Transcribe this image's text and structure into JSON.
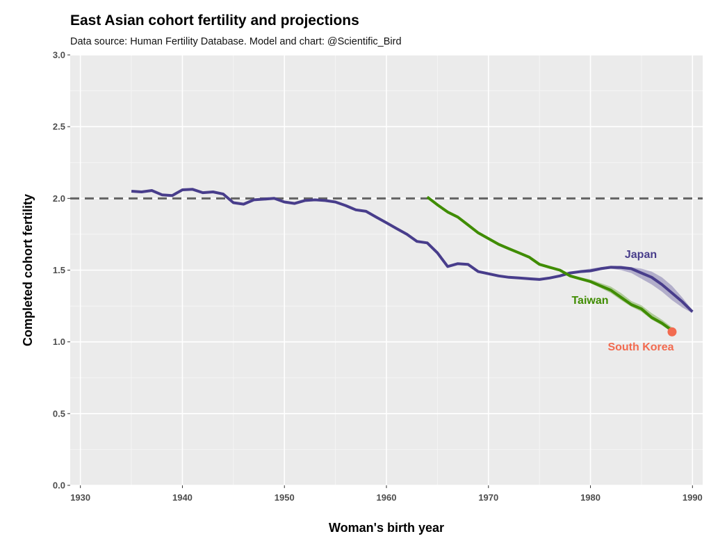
{
  "chart_data": {
    "type": "line",
    "title": "East Asian cohort fertility and projections",
    "subtitle": "Data source: Human Fertility Database.  Model and chart: @Scientific_Bird",
    "xlabel": "Woman's birth year",
    "ylabel": "Completed cohort fertility",
    "xlim": [
      1929,
      1991
    ],
    "ylim": [
      0,
      3
    ],
    "x_ticks": [
      1930,
      1940,
      1950,
      1960,
      1970,
      1980,
      1990
    ],
    "y_ticks": [
      0,
      0.5,
      1,
      1.5,
      2,
      2.5,
      3
    ],
    "x_tick_labels": [
      "1930",
      "1940",
      "1950",
      "1960",
      "1970",
      "1980",
      "1990"
    ],
    "y_tick_labels": [
      "0.0",
      "0.5",
      "1.0",
      "1.5",
      "2.0",
      "2.5",
      "3.0"
    ],
    "grid": true,
    "reference_line": {
      "y": 2.0,
      "style": "dashed",
      "color": "#636363"
    },
    "series": [
      {
        "name": "Japan",
        "color": "#483d8b",
        "x": [
          1935,
          1936,
          1937,
          1938,
          1939,
          1940,
          1941,
          1942,
          1943,
          1944,
          1945,
          1946,
          1947,
          1948,
          1949,
          1950,
          1951,
          1952,
          1953,
          1954,
          1955,
          1956,
          1957,
          1958,
          1959,
          1960,
          1961,
          1962,
          1963,
          1964,
          1965,
          1966,
          1967,
          1968,
          1969,
          1970,
          1971,
          1972,
          1973,
          1974,
          1975,
          1976,
          1977,
          1978,
          1979,
          1980,
          1981,
          1982,
          1983,
          1984,
          1985,
          1986,
          1987,
          1988,
          1989,
          1990
        ],
        "y": [
          2.05,
          2.045,
          2.055,
          2.025,
          2.02,
          2.06,
          2.063,
          2.04,
          2.045,
          2.03,
          1.97,
          1.96,
          1.99,
          1.995,
          2.0,
          1.975,
          1.965,
          1.985,
          1.99,
          1.985,
          1.975,
          1.95,
          1.92,
          1.91,
          1.87,
          1.83,
          1.79,
          1.75,
          1.7,
          1.69,
          1.62,
          1.525,
          1.545,
          1.54,
          1.49,
          1.475,
          1.46,
          1.45,
          1.445,
          1.44,
          1.435,
          1.445,
          1.46,
          1.48,
          1.49,
          1.495,
          1.51,
          1.52,
          1.518,
          1.51,
          1.48,
          1.45,
          1.4,
          1.34,
          1.28,
          1.21
        ],
        "band_x": [
          1979,
          1980,
          1981,
          1982,
          1983,
          1984,
          1985,
          1986,
          1987,
          1988,
          1989,
          1990
        ],
        "band_lower": [
          1.48,
          1.485,
          1.5,
          1.51,
          1.5,
          1.48,
          1.44,
          1.4,
          1.35,
          1.29,
          1.24,
          1.2
        ],
        "band_upper": [
          1.5,
          1.51,
          1.52,
          1.53,
          1.53,
          1.52,
          1.51,
          1.49,
          1.45,
          1.39,
          1.31,
          1.22
        ]
      },
      {
        "name": "Taiwan",
        "color": "#3f8c00",
        "x": [
          1964,
          1965,
          1966,
          1967,
          1968,
          1969,
          1970,
          1971,
          1972,
          1973,
          1974,
          1975,
          1976,
          1977,
          1978,
          1979,
          1980,
          1981,
          1982,
          1983,
          1984,
          1985,
          1986,
          1987,
          1988
        ],
        "y": [
          2.01,
          1.955,
          1.905,
          1.87,
          1.815,
          1.76,
          1.72,
          1.68,
          1.65,
          1.62,
          1.59,
          1.54,
          1.52,
          1.5,
          1.46,
          1.44,
          1.42,
          1.39,
          1.36,
          1.31,
          1.26,
          1.23,
          1.17,
          1.13,
          1.08
        ],
        "band_x": [
          1977,
          1978,
          1979,
          1980,
          1981,
          1982,
          1983,
          1984,
          1985,
          1986,
          1987,
          1988
        ],
        "band_lower": [
          1.495,
          1.455,
          1.435,
          1.41,
          1.375,
          1.34,
          1.29,
          1.245,
          1.21,
          1.155,
          1.115,
          1.065
        ],
        "band_upper": [
          1.505,
          1.47,
          1.45,
          1.435,
          1.41,
          1.385,
          1.34,
          1.285,
          1.255,
          1.2,
          1.155,
          1.1
        ]
      },
      {
        "name": "South Korea",
        "color": "#f26b50",
        "x": [
          1988
        ],
        "y": [
          1.07
        ]
      }
    ]
  }
}
